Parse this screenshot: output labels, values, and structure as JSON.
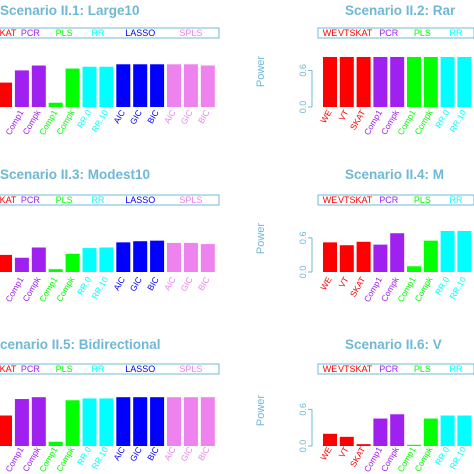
{
  "colors": {
    "title": "#6fb8d6",
    "axis": "#6fb8d6",
    "legend_border": "#6fb8d6",
    "groups": {
      "WE": "#ff0000",
      "VT": "#ff0000",
      "SKAT": "#ff0000",
      "PCR": "#a020f0",
      "PLS": "#00ff00",
      "RR": "#00ffff",
      "LASSO": "#0000ff",
      "SPLS": "#ee82ee"
    }
  },
  "chart_data": [
    {
      "type": "bar",
      "title": "Scenario II.1: Large10",
      "ylabel": "",
      "ylim": [
        0,
        1
      ],
      "group_labels": [
        "SKAT",
        "PCR",
        "PLS",
        "RR",
        "LASSO",
        "SPLS"
      ],
      "categories": [
        "",
        "Comp1",
        "Compk",
        "Comp1",
        "Compk",
        "RR.0",
        "RR.10",
        "AIC",
        "GIC",
        "BIC",
        "AIC",
        "GIC",
        "BIC"
      ],
      "groups": [
        "SKAT",
        "PCR",
        "PCR",
        "PLS",
        "PLS",
        "RR",
        "RR",
        "LASSO",
        "LASSO",
        "LASSO",
        "SPLS",
        "SPLS",
        "SPLS"
      ],
      "values": [
        0.4,
        0.6,
        0.68,
        0.07,
        0.63,
        0.66,
        0.66,
        0.7,
        0.7,
        0.7,
        0.7,
        0.7,
        0.68
      ]
    },
    {
      "type": "bar",
      "title": "Scenario II.2: Rar",
      "ylabel": "Power",
      "yticks": [
        "0.0",
        "0.6"
      ],
      "ylim": [
        0,
        1
      ],
      "group_labels": [
        "WE",
        "VTSKAT",
        "PCR",
        "PLS",
        "RR"
      ],
      "categories": [
        "WE",
        "VT",
        "SKAT",
        "Comp1",
        "Compk",
        "Comp1",
        "Compk",
        "RR.0",
        "RR.10"
      ],
      "groups": [
        "WE",
        "VT",
        "SKAT",
        "PCR",
        "PCR",
        "PLS",
        "PLS",
        "RR",
        "RR"
      ],
      "values": [
        0.82,
        0.82,
        0.82,
        0.82,
        0.82,
        0.82,
        0.82,
        0.82,
        0.82
      ]
    },
    {
      "type": "bar",
      "title": "Scenario II.3: Modest10",
      "ylabel": "",
      "ylim": [
        0,
        1
      ],
      "group_labels": [
        "SKAT",
        "PCR",
        "PLS",
        "RR",
        "LASSO",
        "SPLS"
      ],
      "categories": [
        "",
        "Comp1",
        "Compk",
        "Comp1",
        "Compk",
        "RR.0",
        "RR.10",
        "AIC",
        "GIC",
        "BIC",
        "AIC",
        "GIC",
        "BIC"
      ],
      "groups": [
        "SKAT",
        "PCR",
        "PCR",
        "PLS",
        "PLS",
        "RR",
        "RR",
        "LASSO",
        "LASSO",
        "LASSO",
        "SPLS",
        "SPLS",
        "SPLS"
      ],
      "values": [
        0.3,
        0.25,
        0.43,
        0.05,
        0.32,
        0.42,
        0.43,
        0.52,
        0.54,
        0.55,
        0.51,
        0.51,
        0.49
      ]
    },
    {
      "type": "bar",
      "title": "Scenario II.4: M",
      "ylabel": "Power",
      "yticks": [
        "0.0",
        "0.6"
      ],
      "ylim": [
        0,
        1
      ],
      "group_labels": [
        "WE",
        "VTSKAT",
        "PCR",
        "PLS",
        "RR"
      ],
      "categories": [
        "WE",
        "VT",
        "SKAT",
        "Comp1",
        "Compk",
        "Comp1",
        "Compk",
        "RR.0",
        "RR.10"
      ],
      "groups": [
        "WE",
        "VT",
        "SKAT",
        "PCR",
        "PCR",
        "PLS",
        "PLS",
        "RR",
        "RR"
      ],
      "values": [
        0.52,
        0.47,
        0.53,
        0.48,
        0.68,
        0.1,
        0.55,
        0.72,
        0.72
      ]
    },
    {
      "type": "bar",
      "title": "cenario II.5: Bidirectional",
      "ylabel": "",
      "ylim": [
        0,
        1
      ],
      "group_labels": [
        "SKAT",
        "PCR",
        "PLS",
        "RR",
        "LASSO",
        "SPLS"
      ],
      "categories": [
        "",
        "Comp1",
        "Compk",
        "Comp1",
        "Compk",
        "RR.0",
        "RR.10",
        "AIC",
        "GIC",
        "BIC",
        "AIC",
        "GIC",
        "BIC"
      ],
      "groups": [
        "SKAT",
        "PCR",
        "PCR",
        "PLS",
        "PLS",
        "RR",
        "RR",
        "LASSO",
        "LASSO",
        "LASSO",
        "SPLS",
        "SPLS",
        "SPLS"
      ],
      "values": [
        0.5,
        0.77,
        0.8,
        0.07,
        0.75,
        0.78,
        0.78,
        0.8,
        0.8,
        0.8,
        0.8,
        0.8,
        0.8
      ]
    },
    {
      "type": "bar",
      "title": "Scenario II.6: V",
      "ylabel": "Power",
      "yticks": [
        "0.0",
        "0.6"
      ],
      "ylim": [
        0,
        1
      ],
      "group_labels": [
        "WE",
        "VTSKAT",
        "PCR",
        "PLS",
        "RR"
      ],
      "categories": [
        "WE",
        "VT",
        "SKAT",
        "Comp1",
        "Compk",
        "Comp1",
        "Compk",
        "RR.0",
        "RR.10"
      ],
      "groups": [
        "WE",
        "VT",
        "SKAT",
        "PCR",
        "PCR",
        "PLS",
        "PLS",
        "RR",
        "RR"
      ],
      "values": [
        0.2,
        0.15,
        0.03,
        0.45,
        0.52,
        0.02,
        0.45,
        0.5,
        0.5
      ]
    }
  ]
}
